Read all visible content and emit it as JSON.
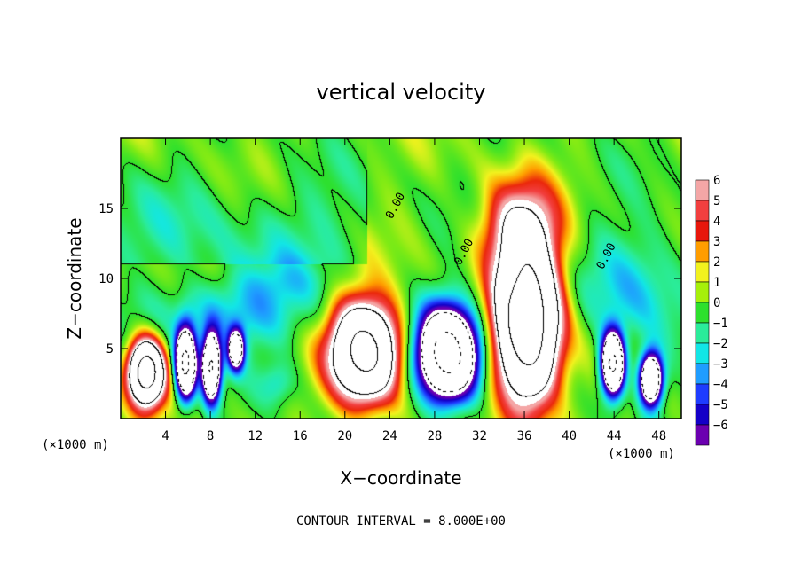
{
  "chart_data": {
    "type": "heatmap",
    "title": "vertical velocity",
    "xlabel": "X−coordinate",
    "ylabel": "Z−coordinate",
    "x_unit": "(×1000 m)",
    "y_unit": "(×1000 m)",
    "xlim": [
      0,
      50
    ],
    "ylim": [
      0,
      20
    ],
    "x_ticks": [
      4,
      8,
      12,
      16,
      20,
      24,
      28,
      32,
      36,
      40,
      44,
      48
    ],
    "y_ticks": [
      5,
      10,
      15
    ],
    "colorbar": {
      "ticks": [
        "6",
        "5",
        "4",
        "3",
        "2",
        "1",
        "0",
        "−1",
        "−2",
        "−3",
        "−4",
        "−5",
        "−6"
      ],
      "colors": [
        "#f4a6a6",
        "#f23f3f",
        "#e8170c",
        "#ff9d00",
        "#f2f21e",
        "#a6f00a",
        "#2de02d",
        "#2aec9a",
        "#12e6e6",
        "#1f9dff",
        "#1e3cff",
        "#1400c8",
        "#6b00b0"
      ]
    },
    "contour_labels": [
      "0.00",
      "0.00",
      "0.00"
    ],
    "note": "CONTOUR INTERVAL = 8.000E+00",
    "features": [
      {
        "x": 2.3,
        "z": 3.3,
        "rx": 1.5,
        "rz": 2.2,
        "value": 20
      },
      {
        "x": 5.8,
        "z": 3.9,
        "rx": 0.9,
        "rz": 2.4,
        "value": -18
      },
      {
        "x": 8.1,
        "z": 3.6,
        "rx": 0.8,
        "rz": 2.3,
        "value": -17
      },
      {
        "x": 10.3,
        "z": 4.9,
        "rx": 0.7,
        "rz": 1.4,
        "value": -12
      },
      {
        "x": 21.8,
        "z": 4.8,
        "rx": 2.9,
        "rz": 3.4,
        "value": 18
      },
      {
        "x": 29.2,
        "z": 4.6,
        "rx": 2.6,
        "rz": 3.2,
        "value": -20
      },
      {
        "x": 36.3,
        "z": 6.8,
        "rx": 2.7,
        "rz": 5.6,
        "value": 21
      },
      {
        "x": 35.5,
        "z": 13.5,
        "rx": 3.3,
        "rz": 3.3,
        "value": 6
      },
      {
        "x": 43.9,
        "z": 3.9,
        "rx": 1.0,
        "rz": 2.2,
        "value": -18
      },
      {
        "x": 47.3,
        "z": 2.8,
        "rx": 1.0,
        "rz": 1.8,
        "value": -16
      },
      {
        "x": 10.0,
        "z": 7.5,
        "rx": 6.5,
        "rz": 2.5,
        "value": -3.5
      },
      {
        "x": 46.0,
        "z": 9.5,
        "rx": 4.5,
        "rz": 4.5,
        "value": -3
      },
      {
        "x": 14.5,
        "z": 10.0,
        "rx": 5.0,
        "rz": 1.8,
        "value": -1.5
      },
      {
        "x": 14.0,
        "z": 2.5,
        "rx": 1.5,
        "rz": 1.5,
        "value": -2
      }
    ]
  }
}
